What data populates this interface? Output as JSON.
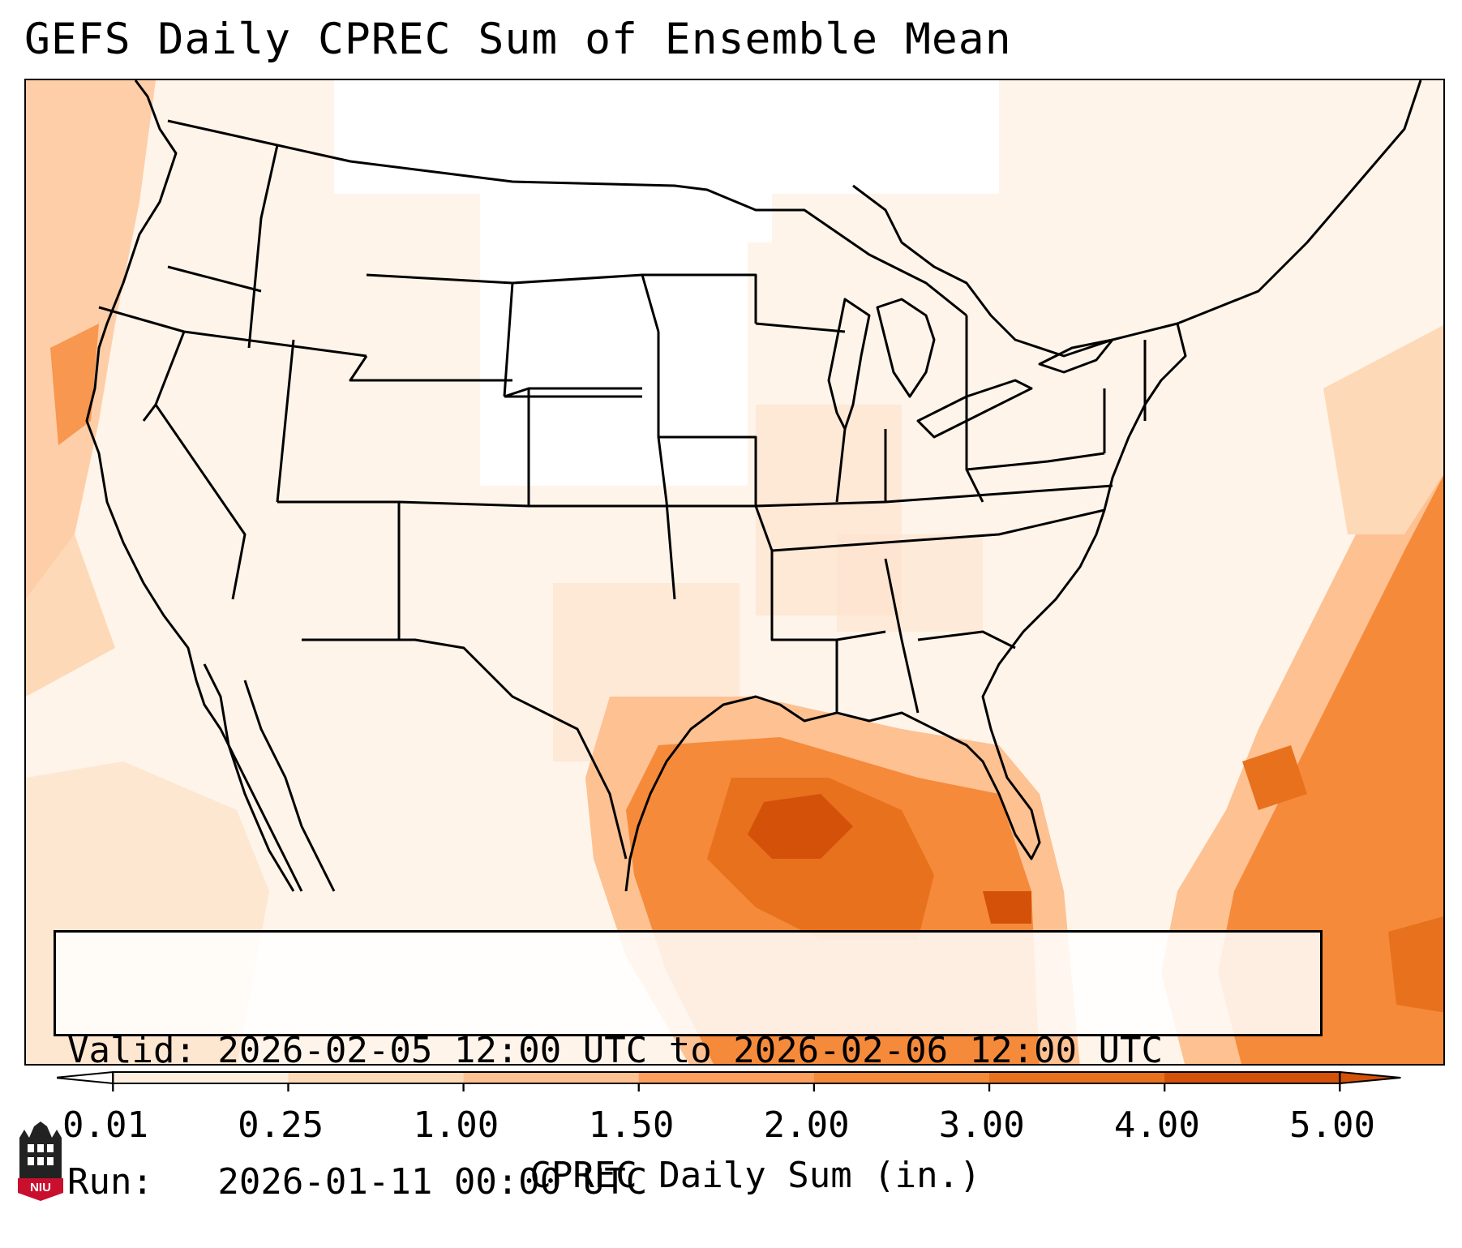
{
  "header": {
    "title": "GEFS Daily CPREC Sum of Ensemble Mean"
  },
  "info_box": {
    "valid_line": "Valid: 2026-02-05 12:00 UTC to 2026-02-06 12:00 UTC",
    "run_line": "Run:   2026-01-11 00:00 UTC"
  },
  "colorbar": {
    "label": "CPREC Daily Sum (in.)",
    "ticks": [
      "0.01",
      "0.25",
      "1.00",
      "1.50",
      "2.00",
      "3.00",
      "4.00",
      "5.00"
    ],
    "colors": [
      "#fdeee0",
      "#fdd9b8",
      "#fdc192",
      "#fd9f5f",
      "#f58a3a",
      "#e8711e",
      "#d45109"
    ]
  },
  "logo": {
    "text": "NIU",
    "color": "#c8102e"
  }
}
